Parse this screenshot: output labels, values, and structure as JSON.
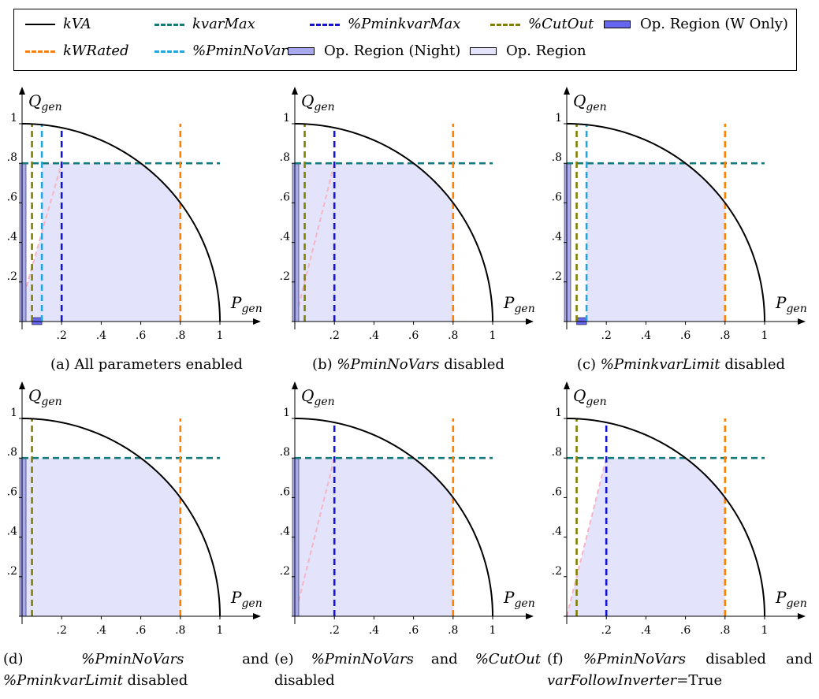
{
  "legend": {
    "items": [
      {
        "label": "kVA",
        "italic": true,
        "kind": "solid",
        "color": "#000000"
      },
      {
        "label": "kvarMax",
        "italic": true,
        "kind": "dashed",
        "color": "#157a7a"
      },
      {
        "label": "%PminkvarMax",
        "italic": true,
        "kind": "dashed",
        "color": "#1414d2"
      },
      {
        "label": "%CutOut",
        "italic": true,
        "kind": "dashed",
        "color": "#808000"
      },
      {
        "label": "Op. Region (W Only)",
        "italic": false,
        "kind": "box",
        "color": "#6666ee"
      },
      {
        "label": "kWRated",
        "italic": true,
        "kind": "dashed",
        "color": "#ff8000"
      },
      {
        "label": "%PminNoVars",
        "italic": true,
        "kind": "dashed",
        "color": "#1ea7e0"
      },
      {
        "label": "Op. Region (Night)",
        "italic": false,
        "kind": "box",
        "color": "#a9a9ef"
      },
      {
        "label": "Op. Region",
        "italic": false,
        "kind": "box",
        "color": "#e3e3fb"
      }
    ]
  },
  "colors": {
    "kva": "#000000",
    "kvarmax": "#157a7a",
    "pminkvarmax": "#1414d2",
    "cutout": "#808000",
    "kwrated": "#ff8000",
    "pminnovars": "#1ea7e0",
    "region": "#e3e3fb",
    "night": "#a9a9ef",
    "wonly": "#6666ee",
    "ramp": "#f5b5c5"
  },
  "axis_labels": {
    "x": "P",
    "x_sub": "gen",
    "y": "Q",
    "y_sub": "gen"
  },
  "x_tick_labels": [
    ".2",
    ".4",
    ".6",
    ".8",
    "1"
  ],
  "y_tick_labels": [
    ".2",
    ".4",
    ".6",
    ".8",
    "1"
  ],
  "chart_data": [
    {
      "type": "area",
      "panel": "a",
      "kva": 1.0,
      "kvarmax": 0.8,
      "kwrated": 0.8,
      "cutout": 0.05,
      "pminnovars": 0.1,
      "pminkvarmax": 0.2,
      "region_x": [
        0.1,
        0.8
      ],
      "night_region": {
        "x": [
          0,
          0.02
        ],
        "y": [
          0,
          0.8
        ]
      },
      "w_only_region": {
        "x": [
          0.05,
          0.1
        ]
      },
      "ramp": [
        [
          0,
          0.1
        ],
        [
          0.2,
          0.8
        ]
      ],
      "xlim": [
        0,
        1.1
      ],
      "ylim": [
        0,
        1.1
      ]
    },
    {
      "type": "area",
      "panel": "b",
      "kva": 1.0,
      "kvarmax": 0.8,
      "kwrated": 0.8,
      "cutout": 0.05,
      "pminkvarmax": 0.2,
      "region_x": [
        0,
        0.8
      ],
      "night_region": {
        "x": [
          0,
          0.02
        ],
        "y": [
          0,
          0.8
        ]
      },
      "ramp": [
        [
          0,
          0
        ],
        [
          0.2,
          0.8
        ]
      ],
      "xlim": [
        0,
        1.1
      ],
      "ylim": [
        0,
        1.1
      ]
    },
    {
      "type": "area",
      "panel": "c",
      "kva": 1.0,
      "kvarmax": 0.8,
      "kwrated": 0.8,
      "cutout": 0.05,
      "pminnovars": 0.1,
      "region_x": [
        0.1,
        0.8
      ],
      "night_region": {
        "x": [
          0,
          0.02
        ],
        "y": [
          0,
          0.8
        ]
      },
      "w_only_region": {
        "x": [
          0.05,
          0.1
        ]
      },
      "xlim": [
        0,
        1.1
      ],
      "ylim": [
        0,
        1.1
      ]
    },
    {
      "type": "area",
      "panel": "d",
      "kva": 1.0,
      "kvarmax": 0.8,
      "kwrated": 0.8,
      "cutout": 0.05,
      "region_x": [
        0,
        0.8
      ],
      "night_region": {
        "x": [
          0,
          0.02
        ],
        "y": [
          0,
          0.8
        ]
      },
      "xlim": [
        0,
        1.1
      ],
      "ylim": [
        0,
        1.1
      ]
    },
    {
      "type": "area",
      "panel": "e",
      "kva": 1.0,
      "kvarmax": 0.8,
      "kwrated": 0.8,
      "pminkvarmax": 0.2,
      "region_x": [
        0,
        0.8
      ],
      "night_region": {
        "x": [
          0,
          0.02
        ],
        "y": [
          0,
          0.8
        ]
      },
      "ramp": [
        [
          0,
          0
        ],
        [
          0.2,
          0.8
        ]
      ],
      "xlim": [
        0,
        1.1
      ],
      "ylim": [
        0,
        1.1
      ]
    },
    {
      "type": "area",
      "panel": "f",
      "kva": 1.0,
      "kvarmax": 0.8,
      "kwrated": 0.8,
      "cutout": 0.05,
      "pminkvarmax": 0.2,
      "region_x": [
        0.2,
        0.8
      ],
      "ramp": [
        [
          0,
          0
        ],
        [
          0.2,
          0.8
        ]
      ],
      "xlim": [
        0,
        1.1
      ],
      "ylim": [
        0,
        1.1
      ]
    }
  ],
  "captions": [
    {
      "tag": "(a)",
      "parts": [
        {
          "t": " All parameters enabled",
          "i": false
        }
      ]
    },
    {
      "tag": "(b)",
      "parts": [
        {
          "t": " ",
          "i": false
        },
        {
          "t": "%PminNoVars",
          "i": true
        },
        {
          "t": " disabled",
          "i": false
        }
      ]
    },
    {
      "tag": "(c)",
      "parts": [
        {
          "t": " ",
          "i": false
        },
        {
          "t": "%PminkvarLimit",
          "i": true
        },
        {
          "t": " disabled",
          "i": false
        }
      ]
    },
    {
      "tag": "(d)",
      "line1": [
        {
          "t": "%PminNoVars",
          "i": true
        },
        {
          "t": "and",
          "i": false
        }
      ],
      "line2": [
        {
          "t": "%PminkvarLimit",
          "i": true
        },
        {
          "t": " disabled",
          "i": false
        }
      ]
    },
    {
      "tag": "(e)",
      "line1": [
        {
          "t": "%PminNoVars",
          "i": true
        },
        {
          "t": "and",
          "i": false
        },
        {
          "t": "%CutOut",
          "i": true
        }
      ],
      "line2": [
        {
          "t": "disabled",
          "i": false
        }
      ]
    },
    {
      "tag": "(f)",
      "line1": [
        {
          "t": "%PminNoVars",
          "i": true
        },
        {
          "t": "disabled",
          "i": false
        },
        {
          "t": "and",
          "i": false
        }
      ],
      "line2": [
        {
          "t": "varFollowInverter",
          "i": true
        },
        {
          "t": "=True",
          "i": false
        }
      ]
    }
  ]
}
